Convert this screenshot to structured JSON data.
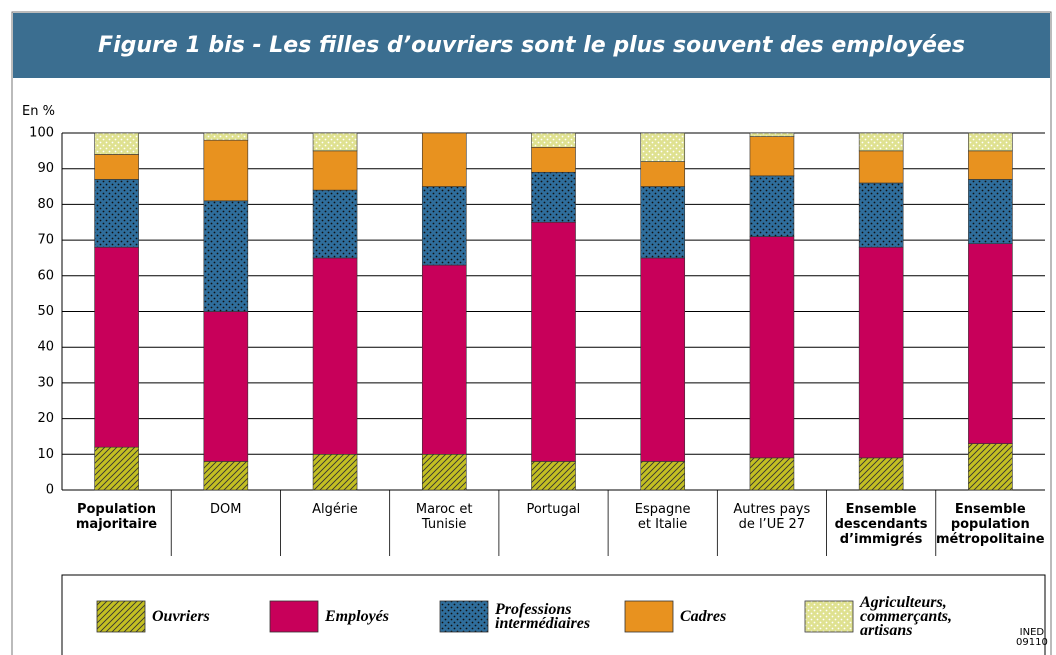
{
  "chart_data": {
    "type": "stacked_bar",
    "title": "Figure 1 bis - Les filles d’ouvriers sont le plus souvent des employées",
    "y_label": "En %",
    "note": "INED\n09110",
    "categories": [
      "Population\nmajoritaire",
      "DOM",
      "Algérie",
      "Maroc et\nTunisie",
      "Portugal",
      "Espagne\net Italie",
      "Autres pays\nde l’UE 27",
      "Ensemble\ndescendants\nd’immigrés",
      "Ensemble\npopulation\nmétropolitaine"
    ],
    "series": [
      {
        "name": "Ouvriers",
        "color": "#c3bf22",
        "pattern": "hatch",
        "values": [
          12,
          8,
          10,
          10,
          8,
          8,
          9,
          9,
          13
        ]
      },
      {
        "name": "Employés",
        "color": "#c8005a",
        "pattern": "none",
        "values": [
          56,
          42,
          55,
          53,
          67,
          57,
          62,
          59,
          56
        ]
      },
      {
        "name": "Professions\nintermédiaires",
        "color": "#2f6e9c",
        "pattern": "dots",
        "values": [
          19,
          31,
          19,
          22,
          14,
          20,
          17,
          18,
          18
        ]
      },
      {
        "name": "Cadres",
        "color": "#e8921f",
        "pattern": "none",
        "values": [
          7,
          17,
          11,
          15,
          7,
          7,
          11,
          9,
          8
        ]
      },
      {
        "name": "Agriculteurs,\ncommerçants,\nartisans",
        "color": "#dfe190",
        "pattern": "lightdots",
        "values": [
          6,
          2,
          5,
          0,
          4,
          8,
          1,
          5,
          5
        ]
      }
    ],
    "ylim": [
      0,
      100
    ],
    "yticks": [
      0,
      10,
      20,
      30,
      40,
      50,
      60,
      70,
      80,
      90,
      100
    ],
    "grid": true
  }
}
